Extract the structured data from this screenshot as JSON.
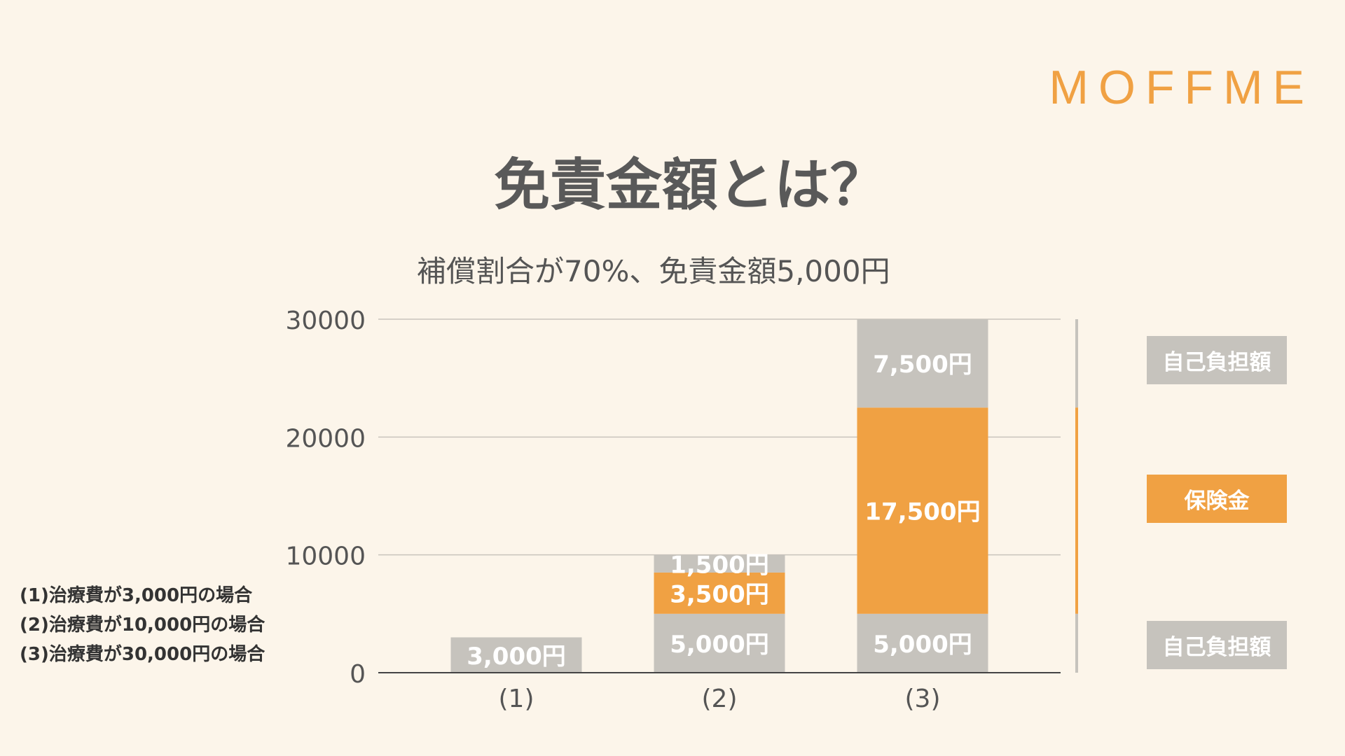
{
  "logo": "MOFFME",
  "title": "免責金額とは？",
  "subtitle": "補償割合が70%、免責金額5,000円",
  "colors": {
    "background": "#FCF5EA",
    "self_pay": "#C6C3BD",
    "insurance": "#F0A143",
    "accent": "#F0A143"
  },
  "chart_data": {
    "type": "bar",
    "stacked": true,
    "categories": [
      "(1)",
      "(2)",
      "(3)"
    ],
    "ylim": [
      0,
      30000
    ],
    "yticks": [
      "0",
      "10000",
      "20000",
      "30000"
    ],
    "grid": true,
    "series": [
      {
        "name": "",
        "color_key": "self_pay",
        "values": [
          3000,
          5000,
          5000
        ],
        "labels": [
          "3,000円",
          "5,000円",
          "5,000円"
        ]
      },
      {
        "name": "",
        "color_key": "insurance",
        "values": [
          0,
          3500,
          17500
        ],
        "labels": [
          "",
          "3,500円",
          "17,500円"
        ]
      },
      {
        "name": "",
        "color_key": "self_pay",
        "values": [
          0,
          1500,
          7500
        ],
        "labels": [
          "",
          "1,500円",
          "7,500円"
        ]
      }
    ]
  },
  "legend": [
    {
      "label": "自己負担額",
      "color_key": "self_pay",
      "range": [
        22500,
        30000
      ]
    },
    {
      "label": "保険金",
      "color_key": "insurance",
      "range": [
        5000,
        22500
      ]
    },
    {
      "label": "自己負担額",
      "color_key": "self_pay",
      "range": [
        0,
        5000
      ]
    }
  ],
  "notes": [
    "(1)治療費が3,000円の場合",
    "(2)治療費が10,000円の場合",
    "(3)治療費が30,000円の場合"
  ]
}
